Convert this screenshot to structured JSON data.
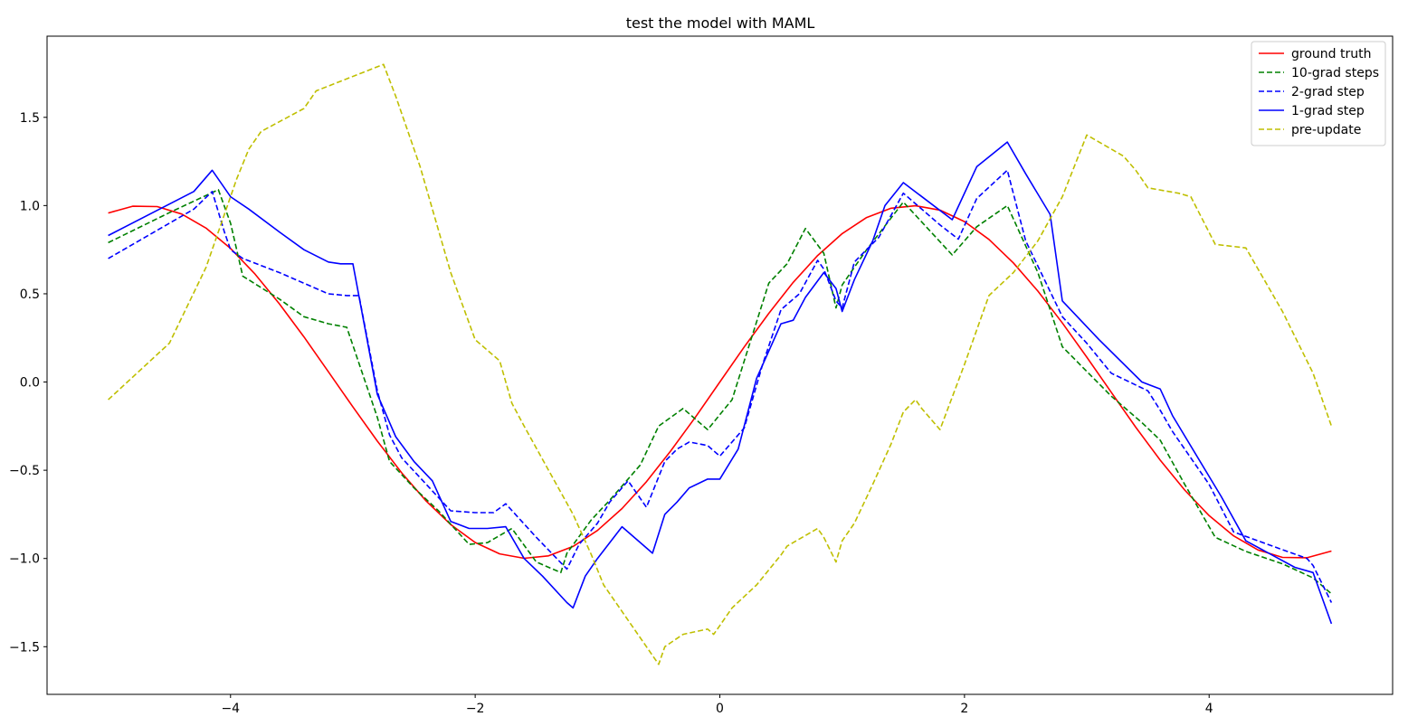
{
  "chart_data": {
    "type": "line",
    "title": "test the model with MAML",
    "xlabel": "",
    "ylabel": "",
    "xlim": [
      -5.5,
      5.5
    ],
    "ylim": [
      -1.77,
      1.96
    ],
    "xticks": [
      -4,
      -2,
      0,
      2,
      4
    ],
    "xtick_labels": [
      "−4",
      "−2",
      "0",
      "2",
      "4"
    ],
    "yticks": [
      -1.5,
      -1.0,
      -0.5,
      0.0,
      0.5,
      1.0,
      1.5
    ],
    "ytick_labels": [
      "−1.5",
      "−1.0",
      "−0.5",
      "0.0",
      "0.5",
      "1.0",
      "1.5"
    ],
    "grid": false,
    "legend_position": "top-right",
    "series": [
      {
        "name": "ground truth",
        "color": "#ff0000",
        "style": "solid",
        "x": [
          -5.0,
          -4.8,
          -4.6,
          -4.4,
          -4.2,
          -4.0,
          -3.8,
          -3.6,
          -3.4,
          -3.2,
          -3.0,
          -2.8,
          -2.6,
          -2.4,
          -2.2,
          -2.0,
          -1.8,
          -1.6,
          -1.4,
          -1.2,
          -1.0,
          -0.8,
          -0.6,
          -0.4,
          -0.2,
          0.0,
          0.2,
          0.4,
          0.6,
          0.8,
          1.0,
          1.2,
          1.4,
          1.6,
          1.8,
          2.0,
          2.2,
          2.4,
          2.6,
          2.8,
          3.0,
          3.2,
          3.4,
          3.6,
          3.8,
          4.0,
          4.2,
          4.4,
          4.6,
          4.8,
          5.0
        ],
        "y": [
          0.958,
          0.996,
          0.994,
          0.952,
          0.872,
          0.757,
          0.612,
          0.443,
          0.256,
          0.058,
          -0.141,
          -0.335,
          -0.515,
          -0.675,
          -0.808,
          -0.909,
          -0.974,
          -0.999,
          -0.985,
          -0.932,
          -0.841,
          -0.717,
          -0.565,
          -0.389,
          -0.199,
          0.0,
          0.199,
          0.389,
          0.565,
          0.717,
          0.841,
          0.932,
          0.985,
          0.999,
          0.974,
          0.909,
          0.808,
          0.675,
          0.515,
          0.335,
          0.141,
          -0.058,
          -0.256,
          -0.443,
          -0.612,
          -0.757,
          -0.872,
          -0.952,
          -0.994,
          -0.996,
          -0.958
        ]
      },
      {
        "name": "10-grad steps",
        "color": "#008000",
        "style": "dashed",
        "x": [
          -5.0,
          -4.5,
          -4.1,
          -4.0,
          -3.9,
          -3.6,
          -3.4,
          -3.2,
          -3.05,
          -2.8,
          -2.7,
          -2.5,
          -2.3,
          -2.05,
          -1.9,
          -1.7,
          -1.5,
          -1.3,
          -1.25,
          -1.05,
          -0.9,
          -0.65,
          -0.5,
          -0.3,
          -0.25,
          -0.1,
          0.1,
          0.2,
          0.4,
          0.55,
          0.7,
          0.85,
          0.95,
          1.0,
          1.05,
          1.2,
          1.5,
          1.9,
          2.1,
          2.35,
          2.6,
          2.8,
          3.2,
          3.45,
          3.6,
          3.8,
          4.05,
          4.3,
          4.6,
          4.85,
          5.0
        ],
        "y": [
          0.79,
          0.96,
          1.09,
          0.9,
          0.6,
          0.47,
          0.37,
          0.33,
          0.31,
          -0.2,
          -0.45,
          -0.6,
          -0.73,
          -0.92,
          -0.91,
          -0.83,
          -1.02,
          -1.08,
          -0.97,
          -0.78,
          -0.67,
          -0.47,
          -0.25,
          -0.15,
          -0.18,
          -0.27,
          -0.1,
          0.12,
          0.56,
          0.67,
          0.87,
          0.73,
          0.42,
          0.55,
          0.6,
          0.75,
          1.02,
          0.72,
          0.88,
          1.0,
          0.62,
          0.2,
          -0.08,
          -0.23,
          -0.33,
          -0.58,
          -0.88,
          -0.96,
          -1.03,
          -1.11,
          -1.2
        ]
      },
      {
        "name": "2-grad step",
        "color": "#0000ff",
        "style": "dashed",
        "x": [
          -5.0,
          -4.3,
          -4.15,
          -4.05,
          -4.0,
          -3.9,
          -3.6,
          -3.2,
          -3.05,
          -2.95,
          -2.8,
          -2.7,
          -2.6,
          -2.4,
          -2.2,
          -2.0,
          -1.85,
          -1.75,
          -1.5,
          -1.25,
          -1.15,
          -1.0,
          -0.9,
          -0.75,
          -0.6,
          -0.45,
          -0.35,
          -0.25,
          -0.1,
          0.0,
          0.2,
          0.35,
          0.5,
          0.65,
          0.8,
          0.85,
          0.95,
          1.0,
          1.1,
          1.3,
          1.5,
          1.8,
          1.95,
          2.1,
          2.35,
          2.5,
          2.8,
          3.0,
          3.2,
          3.5,
          3.6,
          3.7,
          4.0,
          4.2,
          4.4,
          4.6,
          4.8,
          4.85,
          5.0
        ],
        "y": [
          0.7,
          0.98,
          1.08,
          0.85,
          0.75,
          0.7,
          0.62,
          0.5,
          0.49,
          0.49,
          -0.05,
          -0.3,
          -0.43,
          -0.58,
          -0.73,
          -0.74,
          -0.74,
          -0.69,
          -0.88,
          -1.06,
          -0.92,
          -0.8,
          -0.68,
          -0.56,
          -0.71,
          -0.45,
          -0.38,
          -0.34,
          -0.36,
          -0.42,
          -0.26,
          0.1,
          0.41,
          0.5,
          0.69,
          0.64,
          0.46,
          0.42,
          0.68,
          0.82,
          1.07,
          0.89,
          0.81,
          1.04,
          1.2,
          0.8,
          0.37,
          0.22,
          0.05,
          -0.05,
          -0.16,
          -0.28,
          -0.58,
          -0.85,
          -0.9,
          -0.95,
          -1.0,
          -1.04,
          -1.25
        ]
      },
      {
        "name": "1-grad step",
        "color": "#0000ff",
        "style": "solid",
        "x": [
          -5.0,
          -4.3,
          -4.15,
          -4.0,
          -3.85,
          -3.6,
          -3.4,
          -3.2,
          -3.1,
          -3.0,
          -2.8,
          -2.65,
          -2.5,
          -2.35,
          -2.2,
          -2.05,
          -1.9,
          -1.75,
          -1.6,
          -1.45,
          -1.25,
          -1.2,
          -1.1,
          -1.0,
          -0.8,
          -0.55,
          -0.45,
          -0.35,
          -0.25,
          -0.1,
          -0.05,
          0.0,
          0.15,
          0.3,
          0.5,
          0.6,
          0.7,
          0.85,
          0.95,
          1.0,
          1.1,
          1.25,
          1.35,
          1.5,
          1.9,
          2.1,
          2.35,
          2.5,
          2.7,
          2.8,
          3.1,
          3.45,
          3.6,
          3.7,
          4.1,
          4.3,
          4.7,
          4.85,
          5.0
        ],
        "y": [
          0.83,
          1.08,
          1.2,
          1.05,
          0.98,
          0.85,
          0.75,
          0.68,
          0.67,
          0.67,
          -0.07,
          -0.31,
          -0.45,
          -0.56,
          -0.79,
          -0.83,
          -0.83,
          -0.82,
          -1.0,
          -1.1,
          -1.25,
          -1.28,
          -1.1,
          -1.0,
          -0.82,
          -0.97,
          -0.75,
          -0.68,
          -0.6,
          -0.55,
          -0.55,
          -0.55,
          -0.38,
          0.02,
          0.33,
          0.35,
          0.48,
          0.62,
          0.53,
          0.4,
          0.58,
          0.8,
          1.0,
          1.13,
          0.92,
          1.22,
          1.36,
          1.18,
          0.95,
          0.46,
          0.24,
          0.0,
          -0.04,
          -0.19,
          -0.65,
          -0.9,
          -1.05,
          -1.08,
          -1.37
        ]
      },
      {
        "name": "pre-update",
        "color": "#bfbf00",
        "style": "dashed",
        "x": [
          -5.0,
          -4.5,
          -4.2,
          -4.05,
          -3.95,
          -3.85,
          -3.75,
          -3.4,
          -3.3,
          -2.75,
          -2.65,
          -2.45,
          -2.2,
          -2.0,
          -1.8,
          -1.7,
          -1.6,
          -1.4,
          -1.2,
          -1.05,
          -0.95,
          -0.7,
          -0.5,
          -0.45,
          -0.3,
          -0.1,
          -0.05,
          0.0,
          0.1,
          0.3,
          0.5,
          0.55,
          0.8,
          0.85,
          0.95,
          1.0,
          1.1,
          1.25,
          1.4,
          1.5,
          1.6,
          1.65,
          1.8,
          2.0,
          2.2,
          2.4,
          2.6,
          2.8,
          3.0,
          3.3,
          3.4,
          3.5,
          3.75,
          3.85,
          4.05,
          4.3,
          4.6,
          4.85,
          5.0
        ],
        "y": [
          -0.1,
          0.22,
          0.65,
          0.95,
          1.15,
          1.32,
          1.42,
          1.55,
          1.65,
          1.8,
          1.62,
          1.22,
          0.62,
          0.24,
          0.12,
          -0.12,
          -0.25,
          -0.5,
          -0.75,
          -0.98,
          -1.15,
          -1.4,
          -1.6,
          -1.5,
          -1.43,
          -1.4,
          -1.43,
          -1.38,
          -1.28,
          -1.15,
          -0.98,
          -0.93,
          -0.83,
          -0.88,
          -1.02,
          -0.9,
          -0.8,
          -0.58,
          -0.35,
          -0.17,
          -0.1,
          -0.15,
          -0.27,
          0.1,
          0.49,
          0.62,
          0.8,
          1.05,
          1.4,
          1.28,
          1.2,
          1.1,
          1.07,
          1.05,
          0.78,
          0.76,
          0.4,
          0.05,
          -0.25
        ]
      }
    ]
  }
}
